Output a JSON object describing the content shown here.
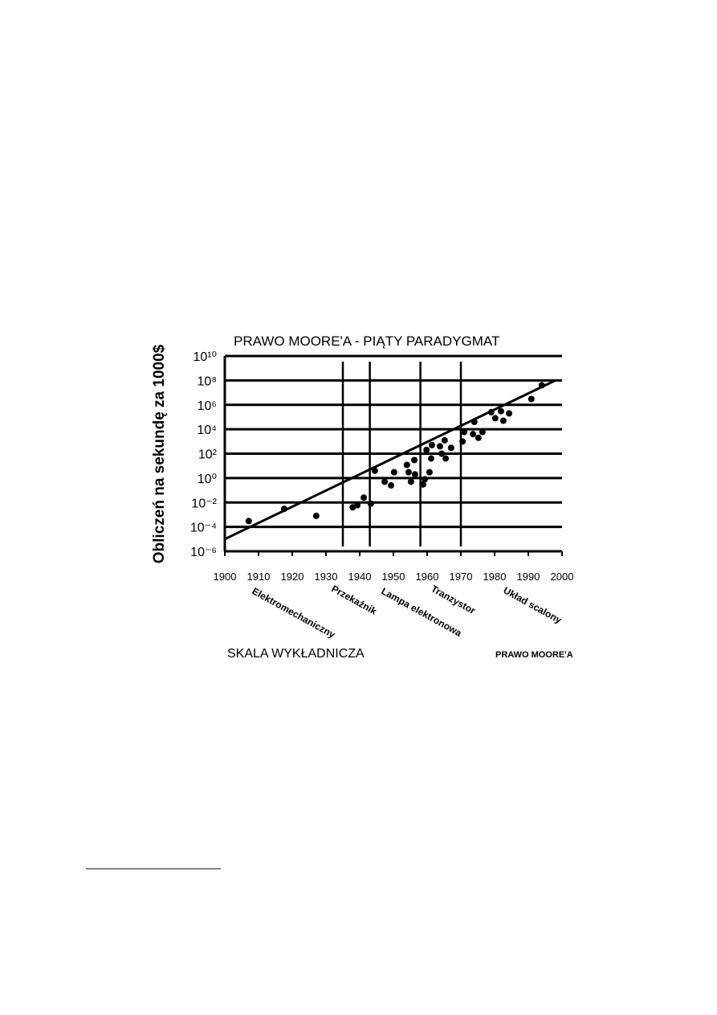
{
  "chart_data": {
    "type": "scatter",
    "title": "PRAWO MOORE'A - PIĄTY PARADYGMAT",
    "y_label": "Obliczeń na sekundę za 1000$",
    "x_label": "SKALA WYKŁADNICZA",
    "caption": "PRAWO MOORE'A",
    "log_y": true,
    "grid": true,
    "color": "#000000",
    "xlim": [
      1900,
      2000
    ],
    "xticks": [
      1900,
      1910,
      1920,
      1930,
      1940,
      1950,
      1960,
      1970,
      1980,
      1990,
      2000
    ],
    "ylim": [
      1e-06,
      10000000000.0
    ],
    "yticks": [
      {
        "value": 1e-06,
        "label": "10⁻⁶"
      },
      {
        "value": 0.0001,
        "label": "10⁻⁴"
      },
      {
        "value": 0.01,
        "label": "10⁻²"
      },
      {
        "value": 1,
        "label": "10⁰"
      },
      {
        "value": 100,
        "label": "10²"
      },
      {
        "value": 10000,
        "label": "10⁴"
      },
      {
        "value": 1000000,
        "label": "10⁶"
      },
      {
        "value": 100000000,
        "label": "10⁸"
      },
      {
        "value": 10000000000,
        "label": "10¹⁰"
      }
    ],
    "dividers": [
      1935,
      1943,
      1958,
      1970
    ],
    "annotations": [
      "Elektromechaniczny",
      "Przekaźnik",
      "Lampa elektronowa",
      "Tranzystor",
      "Układ scalony"
    ],
    "x": [
      1907.1,
      1917.6,
      1927.1,
      1937.9,
      1939.3,
      1941.2,
      1943.3,
      1944.5,
      1947.4,
      1949.3,
      1950.2,
      1954.0,
      1954.5,
      1955.2,
      1956.2,
      1956.4,
      1958.8,
      1959.3,
      1959.8,
      1960.7,
      1961.2,
      1961.4,
      1963.8,
      1964.3,
      1965.2,
      1965.5,
      1967.1,
      1970.5,
      1971.0,
      1973.6,
      1974.0,
      1975.2,
      1976.4,
      1979.0,
      1980.2,
      1981.9,
      1982.6,
      1984.3,
      1990.9,
      1994.0
    ],
    "values": [
      0.0003,
      0.003,
      0.0008,
      0.004,
      0.006,
      0.025,
      0.008,
      4,
      0.5,
      0.25,
      3,
      12,
      3,
      0.5,
      30,
      2,
      0.3,
      0.8,
      200,
      3,
      40,
      500,
      400,
      100,
      1250,
      40,
      300,
      1000,
      6000,
      4000,
      40000,
      2000,
      6000,
      250000,
      80000,
      300000,
      50000,
      200000,
      3000000,
      40000000
    ],
    "trend": {
      "x": [
        1900,
        1998
      ],
      "values": [
        1e-05,
        100000000.0
      ]
    }
  }
}
